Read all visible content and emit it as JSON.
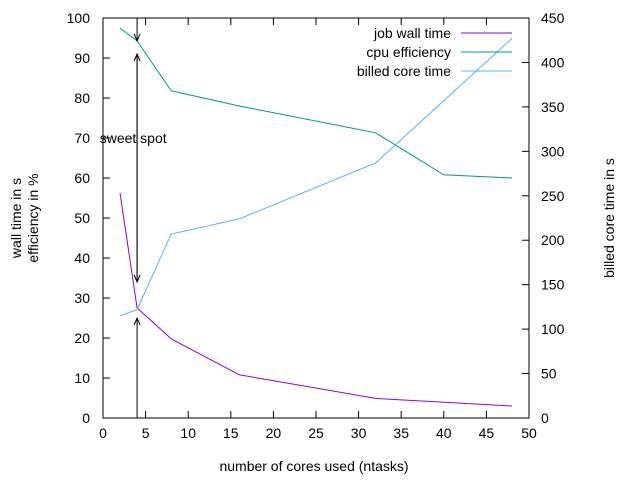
{
  "chart_data": {
    "type": "line",
    "title": "",
    "xlabel": "number of cores used (ntasks)",
    "ylabel_lines": [
      "wall time in s",
      "efficiency in %"
    ],
    "y2label": "billed core time in s",
    "xlim": [
      0,
      50
    ],
    "ylim": [
      0,
      100
    ],
    "y2lim": [
      0,
      450
    ],
    "x_ticks": [
      0,
      5,
      10,
      15,
      20,
      25,
      30,
      35,
      40,
      45,
      50
    ],
    "y_ticks": [
      0,
      10,
      20,
      30,
      40,
      50,
      60,
      70,
      80,
      90,
      100
    ],
    "y2_ticks": [
      0,
      50,
      100,
      150,
      200,
      250,
      300,
      350,
      400,
      450
    ],
    "grid": false,
    "legend_position": "top-right",
    "series": [
      {
        "name": "job wall time",
        "axis": "y",
        "color": "#9400d3",
        "x": [
          2,
          4,
          8,
          16,
          32,
          48
        ],
        "y": [
          56.3,
          27.5,
          19.8,
          10.8,
          4.9,
          3.0
        ]
      },
      {
        "name": "cpu efficiency",
        "axis": "y",
        "color": "#009e73",
        "x": [
          2,
          4,
          8,
          16,
          32,
          40,
          48
        ],
        "y": [
          97.5,
          94.3,
          81.8,
          78.0,
          71.3,
          60.8,
          60.0
        ]
      },
      {
        "name": "billed core time",
        "axis": "y2",
        "color": "#56b4e9",
        "x": [
          2,
          4,
          8,
          16,
          32,
          48
        ],
        "y": [
          115,
          122,
          207,
          224,
          287,
          427
        ]
      }
    ],
    "annotations": [
      {
        "text": "sweet spot",
        "x": 0.2,
        "y": 70
      }
    ],
    "arrows": [
      {
        "x": 4,
        "from_y": 100,
        "to_y": 94.3
      },
      {
        "x": 4,
        "from_y": 34,
        "to_y": 91
      },
      {
        "x": 4,
        "from_y": 91,
        "to_y": 34
      },
      {
        "x": 4,
        "from_y": 0,
        "to_y": 25
      }
    ]
  }
}
